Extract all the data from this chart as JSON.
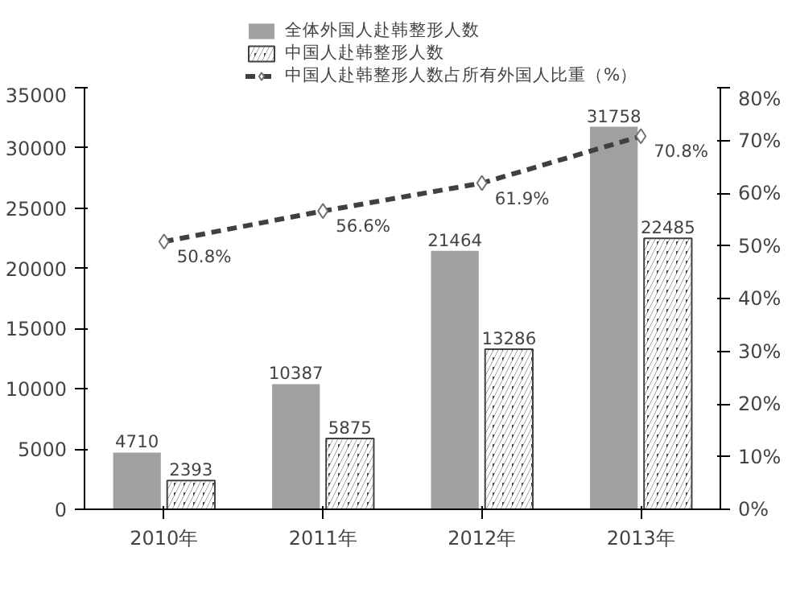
{
  "chart_data": {
    "type": "bar",
    "categories": [
      "2010年",
      "2011年",
      "2012年",
      "2013年"
    ],
    "series": [
      {
        "name": "全体外国人赴韩整形人数",
        "color": "#a0a0a0",
        "values": [
          4710,
          10387,
          21464,
          31758
        ]
      },
      {
        "name": "中国人赴韩整形人数",
        "color": "#404040",
        "values": [
          2393,
          5875,
          13286,
          22485
        ]
      },
      {
        "name": "中国人赴韩整形人数占所有外国人比重（%）",
        "color": "#404040",
        "type": "line",
        "axis": "y2",
        "marker": "diamond",
        "line_style": "dashed",
        "values": [
          50.8,
          56.6,
          61.9,
          70.8
        ],
        "value_labels": [
          "50.8%",
          "56.6%",
          "61.9%",
          "70.8%"
        ]
      }
    ],
    "ylim": [
      0,
      35000
    ],
    "yticks": [
      0,
      5000,
      10000,
      15000,
      20000,
      25000,
      30000,
      35000
    ],
    "y2lim": [
      0,
      80
    ],
    "y2ticks": [
      {
        "value": 0,
        "label": "0%"
      },
      {
        "value": 10,
        "label": "10%"
      },
      {
        "value": 20,
        "label": "20%"
      },
      {
        "value": 30,
        "label": "30%"
      },
      {
        "value": 40,
        "label": "40%"
      },
      {
        "value": 50,
        "label": "50%"
      },
      {
        "value": 60,
        "label": "60%"
      },
      {
        "value": 70,
        "label": "70%"
      },
      {
        "value": 80,
        "label": "80%"
      }
    ],
    "data_labels": true,
    "legend": "top",
    "grid": false
  }
}
